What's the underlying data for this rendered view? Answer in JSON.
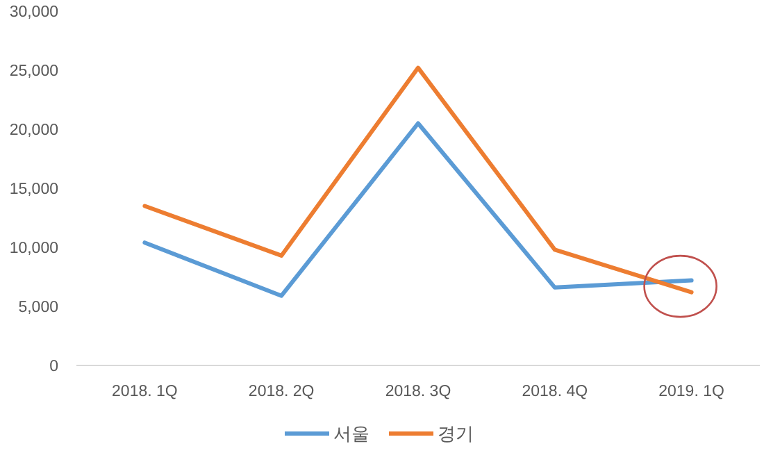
{
  "chart_data": {
    "type": "line",
    "categories": [
      "2018. 1Q",
      "2018. 2Q",
      "2018. 3Q",
      "2018. 4Q",
      "2019. 1Q"
    ],
    "series": [
      {
        "name": "서울",
        "color": "#5b9bd5",
        "values": [
          10400,
          5900,
          20500,
          6600,
          7200
        ]
      },
      {
        "name": "경기",
        "color": "#ed7d31",
        "values": [
          13500,
          9300,
          25200,
          9800,
          6200
        ]
      }
    ],
    "ylim": [
      0,
      30000
    ],
    "yticks": [
      0,
      {
        "value": 5000,
        "label": "5,000"
      },
      {
        "value": 10000,
        "label": "10,000"
      },
      {
        "value": 15000,
        "label": "15,000"
      },
      {
        "value": 20000,
        "label": "20,000"
      },
      {
        "value": 25000,
        "label": "25,000"
      },
      {
        "value": 30000,
        "label": "30,000"
      }
    ],
    "grid": false,
    "legend": "bottom",
    "marker": "none",
    "line_style": "solid"
  }
}
